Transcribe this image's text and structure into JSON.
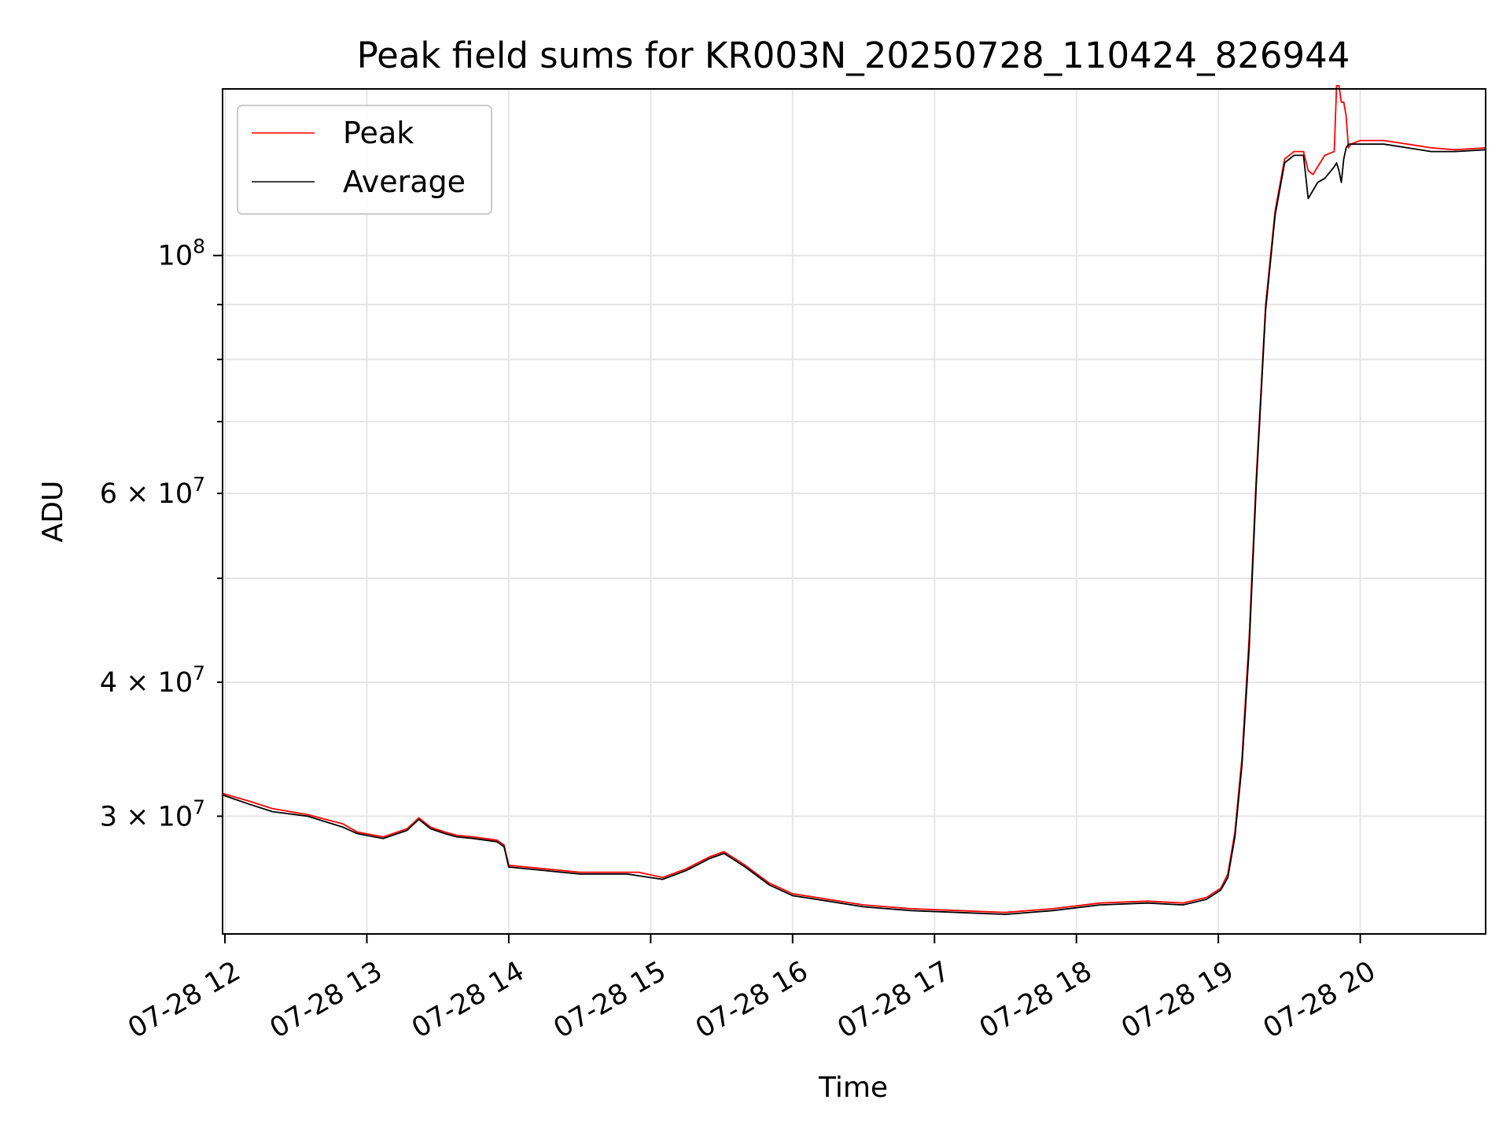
{
  "chart_data": {
    "type": "line",
    "title": "Peak field sums for KR003N_20250728_110424_826944",
    "xlabel": "Time",
    "ylabel": "ADU",
    "yscale": "log",
    "xlim": [
      "2025-07-28T11:59",
      "2025-07-28T20:53"
    ],
    "ylim": [
      23300000,
      143000000
    ],
    "grid": true,
    "legend": {
      "placement": "top-left",
      "entries": [
        "Peak",
        "Average"
      ]
    },
    "xticks": [
      {
        "time": "2025-07-28T12:00",
        "label": "07-28 12"
      },
      {
        "time": "2025-07-28T13:00",
        "label": "07-28 13"
      },
      {
        "time": "2025-07-28T14:00",
        "label": "07-28 14"
      },
      {
        "time": "2025-07-28T15:00",
        "label": "07-28 15"
      },
      {
        "time": "2025-07-28T16:00",
        "label": "07-28 16"
      },
      {
        "time": "2025-07-28T17:00",
        "label": "07-28 17"
      },
      {
        "time": "2025-07-28T18:00",
        "label": "07-28 18"
      },
      {
        "time": "2025-07-28T19:00",
        "label": "07-28 19"
      },
      {
        "time": "2025-07-28T20:00",
        "label": "07-28 20"
      }
    ],
    "yticks_major": [
      {
        "value": 100000000,
        "mant": "10",
        "exp": "8"
      }
    ],
    "yticks_minor": [
      {
        "value": 30000000,
        "mant": "3 × 10",
        "exp": "7"
      },
      {
        "value": 40000000,
        "mant": "4 × 10",
        "exp": "7"
      },
      {
        "value": 50000000
      },
      {
        "value": 60000000,
        "mant": "6 × 10",
        "exp": "7"
      },
      {
        "value": 70000000
      },
      {
        "value": 80000000
      },
      {
        "value": 90000000
      }
    ],
    "series": [
      {
        "name": "Peak",
        "color": "#ff0000",
        "x": [
          "2025-07-28T11:59",
          "2025-07-28T12:10",
          "2025-07-28T12:20",
          "2025-07-28T12:35",
          "2025-07-28T12:50",
          "2025-07-28T12:56",
          "2025-07-28T13:07",
          "2025-07-28T13:17",
          "2025-07-28T13:22",
          "2025-07-28T13:27",
          "2025-07-28T13:33",
          "2025-07-28T13:38",
          "2025-07-28T13:45",
          "2025-07-28T13:55",
          "2025-07-28T13:58",
          "2025-07-28T14:00",
          "2025-07-28T14:15",
          "2025-07-28T14:30",
          "2025-07-28T14:50",
          "2025-07-28T14:55",
          "2025-07-28T15:05",
          "2025-07-28T15:15",
          "2025-07-28T15:25",
          "2025-07-28T15:31",
          "2025-07-28T15:40",
          "2025-07-28T15:50",
          "2025-07-28T16:00",
          "2025-07-28T16:15",
          "2025-07-28T16:30",
          "2025-07-28T16:50",
          "2025-07-28T17:10",
          "2025-07-28T17:30",
          "2025-07-28T17:50",
          "2025-07-28T18:10",
          "2025-07-28T18:30",
          "2025-07-28T18:45",
          "2025-07-28T18:55",
          "2025-07-28T19:01",
          "2025-07-28T19:04",
          "2025-07-28T19:07",
          "2025-07-28T19:10",
          "2025-07-28T19:13",
          "2025-07-28T19:16",
          "2025-07-28T19:20",
          "2025-07-28T19:24",
          "2025-07-28T19:28",
          "2025-07-28T19:32",
          "2025-07-28T19:36",
          "2025-07-28T19:38",
          "2025-07-28T19:40",
          "2025-07-28T19:42",
          "2025-07-28T19:45",
          "2025-07-28T19:49",
          "2025-07-28T19:50",
          "2025-07-28T19:51",
          "2025-07-28T19:52",
          "2025-07-28T19:53",
          "2025-07-28T19:54",
          "2025-07-28T19:55",
          "2025-07-28T19:56",
          "2025-07-28T20:00",
          "2025-07-28T20:10",
          "2025-07-28T20:20",
          "2025-07-28T20:30",
          "2025-07-28T20:40",
          "2025-07-28T20:53"
        ],
        "y": [
          31500000,
          31000000,
          30500000,
          30100000,
          29500000,
          29000000,
          28700000,
          29200000,
          29900000,
          29300000,
          29000000,
          28800000,
          28700000,
          28500000,
          28200000,
          27000000,
          26800000,
          26600000,
          26600000,
          26600000,
          26300000,
          26800000,
          27500000,
          27800000,
          27000000,
          26000000,
          25400000,
          25100000,
          24800000,
          24600000,
          24500000,
          24400000,
          24600000,
          24900000,
          25000000,
          24900000,
          25200000,
          25700000,
          26500000,
          29000000,
          34000000,
          44000000,
          62000000,
          90000000,
          110000000,
          123000000,
          125000000,
          125000000,
          120000000,
          119000000,
          121000000,
          124000000,
          125000000,
          144000000,
          144000000,
          139000000,
          139000000,
          135000000,
          126000000,
          127000000,
          128000000,
          128000000,
          127000000,
          126000000,
          125500000,
          126000000
        ]
      },
      {
        "name": "Average",
        "color": "#000000",
        "x": [
          "2025-07-28T11:59",
          "2025-07-28T12:10",
          "2025-07-28T12:20",
          "2025-07-28T12:35",
          "2025-07-28T12:50",
          "2025-07-28T12:56",
          "2025-07-28T13:07",
          "2025-07-28T13:17",
          "2025-07-28T13:22",
          "2025-07-28T13:27",
          "2025-07-28T13:33",
          "2025-07-28T13:38",
          "2025-07-28T13:45",
          "2025-07-28T13:55",
          "2025-07-28T13:58",
          "2025-07-28T14:00",
          "2025-07-28T14:15",
          "2025-07-28T14:30",
          "2025-07-28T14:50",
          "2025-07-28T14:55",
          "2025-07-28T15:05",
          "2025-07-28T15:15",
          "2025-07-28T15:25",
          "2025-07-28T15:31",
          "2025-07-28T15:40",
          "2025-07-28T15:50",
          "2025-07-28T16:00",
          "2025-07-28T16:15",
          "2025-07-28T16:30",
          "2025-07-28T16:50",
          "2025-07-28T17:10",
          "2025-07-28T17:30",
          "2025-07-28T17:50",
          "2025-07-28T18:10",
          "2025-07-28T18:30",
          "2025-07-28T18:45",
          "2025-07-28T18:55",
          "2025-07-28T19:01",
          "2025-07-28T19:04",
          "2025-07-28T19:07",
          "2025-07-28T19:10",
          "2025-07-28T19:13",
          "2025-07-28T19:16",
          "2025-07-28T19:20",
          "2025-07-28T19:24",
          "2025-07-28T19:28",
          "2025-07-28T19:32",
          "2025-07-28T19:36",
          "2025-07-28T19:38",
          "2025-07-28T19:40",
          "2025-07-28T19:42",
          "2025-07-28T19:45",
          "2025-07-28T19:49",
          "2025-07-28T19:50",
          "2025-07-28T19:51",
          "2025-07-28T19:52",
          "2025-07-28T19:53",
          "2025-07-28T19:54",
          "2025-07-28T19:55",
          "2025-07-28T19:56",
          "2025-07-28T20:00",
          "2025-07-28T20:10",
          "2025-07-28T20:20",
          "2025-07-28T20:30",
          "2025-07-28T20:40",
          "2025-07-28T20:53"
        ],
        "y": [
          31400000,
          30800000,
          30300000,
          30000000,
          29300000,
          28900000,
          28600000,
          29100000,
          29800000,
          29200000,
          28900000,
          28700000,
          28600000,
          28400000,
          28100000,
          26900000,
          26700000,
          26500000,
          26500000,
          26400000,
          26200000,
          26700000,
          27400000,
          27700000,
          26900000,
          25900000,
          25300000,
          25000000,
          24700000,
          24500000,
          24400000,
          24300000,
          24500000,
          24800000,
          24900000,
          24800000,
          25100000,
          25600000,
          26300000,
          28700000,
          33500000,
          43000000,
          61000000,
          89000000,
          109000000,
          122000000,
          124000000,
          124000000,
          113000000,
          115000000,
          117000000,
          118000000,
          121000000,
          122000000,
          120000000,
          117000000,
          123000000,
          126000000,
          127000000,
          127000000,
          127000000,
          127000000,
          126000000,
          125000000,
          125000000,
          125500000
        ]
      }
    ]
  }
}
